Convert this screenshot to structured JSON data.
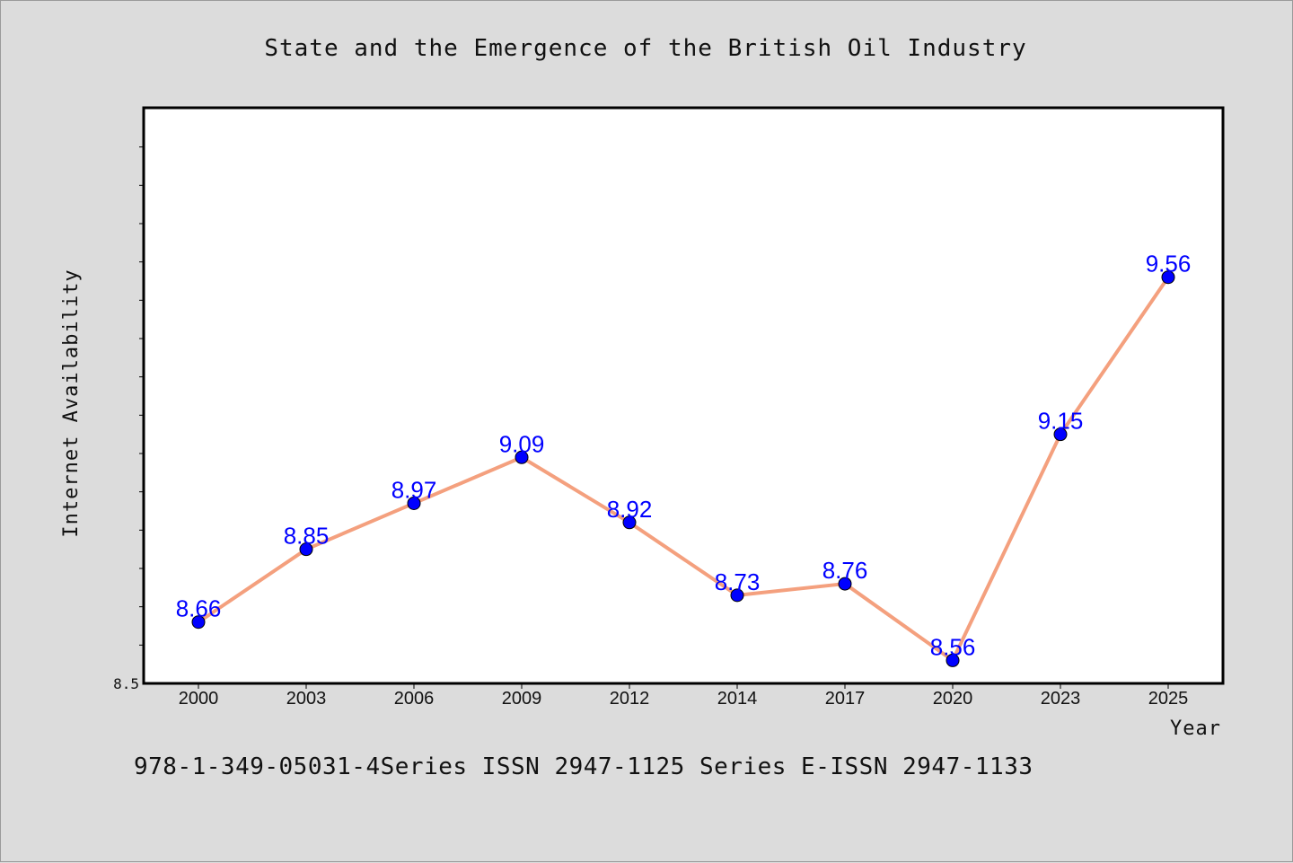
{
  "chart_data": {
    "type": "line",
    "title": "State and the Emergence of the British Oil Industry",
    "xlabel": "Year",
    "ylabel": "Internet Availability",
    "categories": [
      "2000",
      "2003",
      "2006",
      "2009",
      "2012",
      "2014",
      "2017",
      "2020",
      "2023",
      "2025"
    ],
    "values": [
      8.66,
      8.85,
      8.97,
      9.09,
      8.92,
      8.73,
      8.76,
      8.56,
      9.15,
      9.56
    ],
    "data_labels": [
      "8.66",
      "8.85",
      "8.97",
      "9.09",
      "8.92",
      "8.73",
      "8.76",
      "8.56",
      "9.15",
      "9.56"
    ],
    "ylim": [
      8.5,
      10.0
    ],
    "y_tick_labels": [
      "8.5"
    ],
    "line_color": "#f4a07e",
    "marker_color": "#0000ff",
    "label_color": "#0000ff",
    "grid": false
  },
  "footer": {
    "text": "978-1-349-05031-4Series ISSN 2947-1125 Series E-ISSN 2947-1133"
  }
}
